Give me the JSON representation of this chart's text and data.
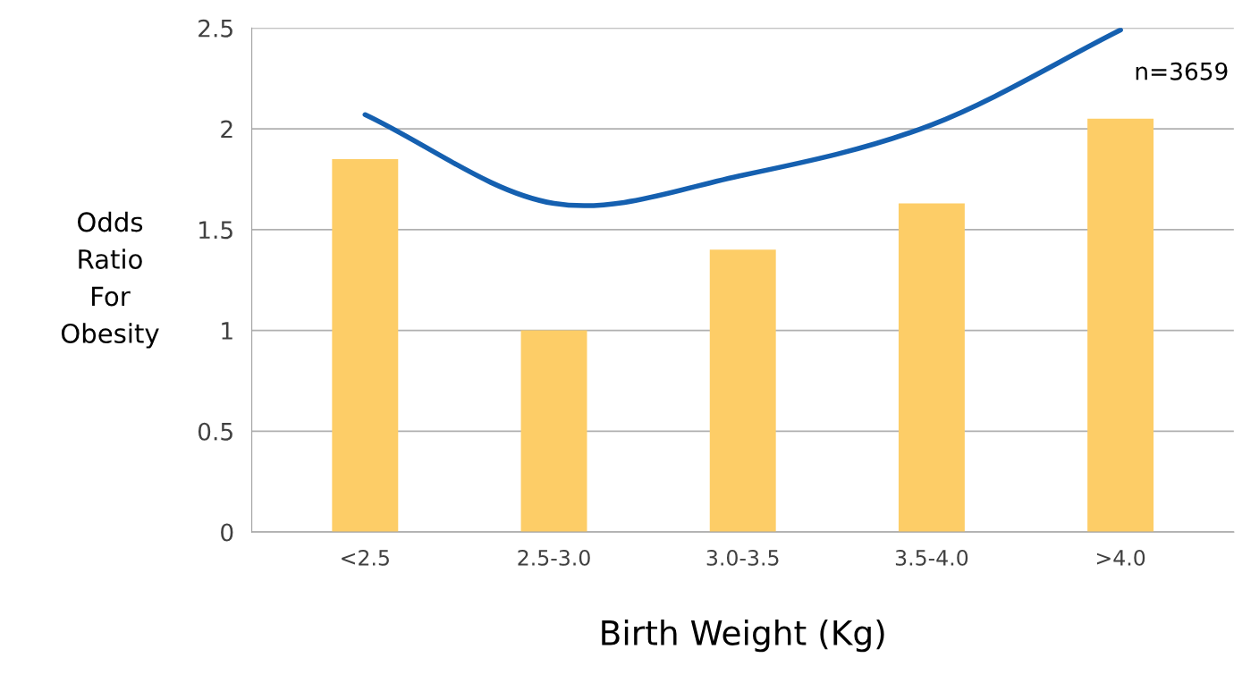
{
  "chart_data": {
    "type": "bar",
    "xlabel": "Birth Weight (Kg)",
    "ylabel": "Odds\nRatio\nFor\nObesity",
    "categories": [
      "<2.5",
      "2.5-3.0",
      "3.0-3.5",
      "3.5-4.0",
      ">4.0"
    ],
    "series": [
      {
        "color": "#fdcd67",
        "values": [
          1.85,
          1.0,
          1.4,
          1.63,
          2.05
        ]
      },
      {
        "type": "line",
        "color": "#1560b0",
        "values": [
          2.07,
          1.63,
          1.77,
          2.02,
          2.49
        ]
      }
    ],
    "ylim": [
      0,
      2.5
    ],
    "yticks": [
      0,
      0.5,
      1,
      1.5,
      2,
      2.5
    ],
    "grid": "y",
    "annotations": [
      "n=3659"
    ]
  }
}
